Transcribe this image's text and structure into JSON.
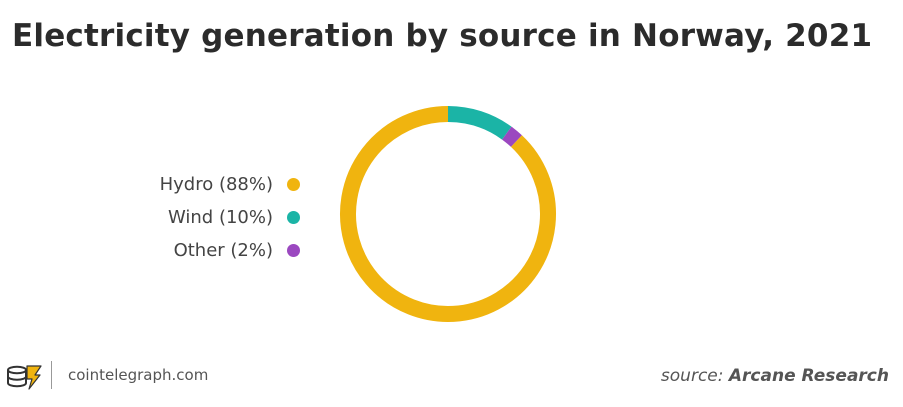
{
  "chart_data": {
    "type": "pie",
    "title": "Electricity generation by source in Norway, 2021",
    "categories": [
      "Hydro (88%)",
      "Wind (10%)",
      "Other (2%)"
    ],
    "values": [
      88,
      10,
      2
    ],
    "colors": [
      "#f0b40f",
      "#1bb4a6",
      "#9b48c0"
    ],
    "legend_placement": "left",
    "style": "donut"
  },
  "footer": {
    "site": "cointelegraph.com",
    "source_prefix": "source:",
    "source_name": "Arcane Research",
    "logo_icon": "cointelegraph-logo-icon"
  }
}
